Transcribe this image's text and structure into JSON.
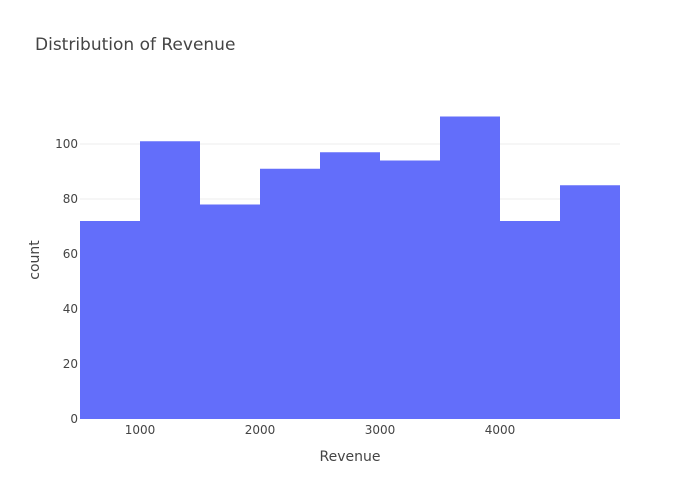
{
  "chart_data": {
    "type": "bar",
    "subtype": "histogram",
    "title": "Distribution of Revenue",
    "xlabel": "Revenue",
    "ylabel": "count",
    "bin_edges": [
      500,
      1000,
      1500,
      2000,
      2500,
      3000,
      3500,
      4000,
      4500,
      5000
    ],
    "values": [
      72,
      101,
      78,
      91,
      97,
      94,
      110,
      72,
      85
    ],
    "xlim": [
      500,
      5000
    ],
    "ylim": [
      0,
      120
    ],
    "x_ticks": [
      1000,
      2000,
      3000,
      4000
    ],
    "x_tick_labels": [
      "1000",
      "2000",
      "3000",
      "4000"
    ],
    "y_ticks": [
      0,
      20,
      40,
      60,
      80,
      100
    ],
    "y_tick_labels": [
      "0",
      "20",
      "40",
      "60",
      "80",
      "100"
    ],
    "grid": true,
    "bar_color": "#636efa"
  }
}
